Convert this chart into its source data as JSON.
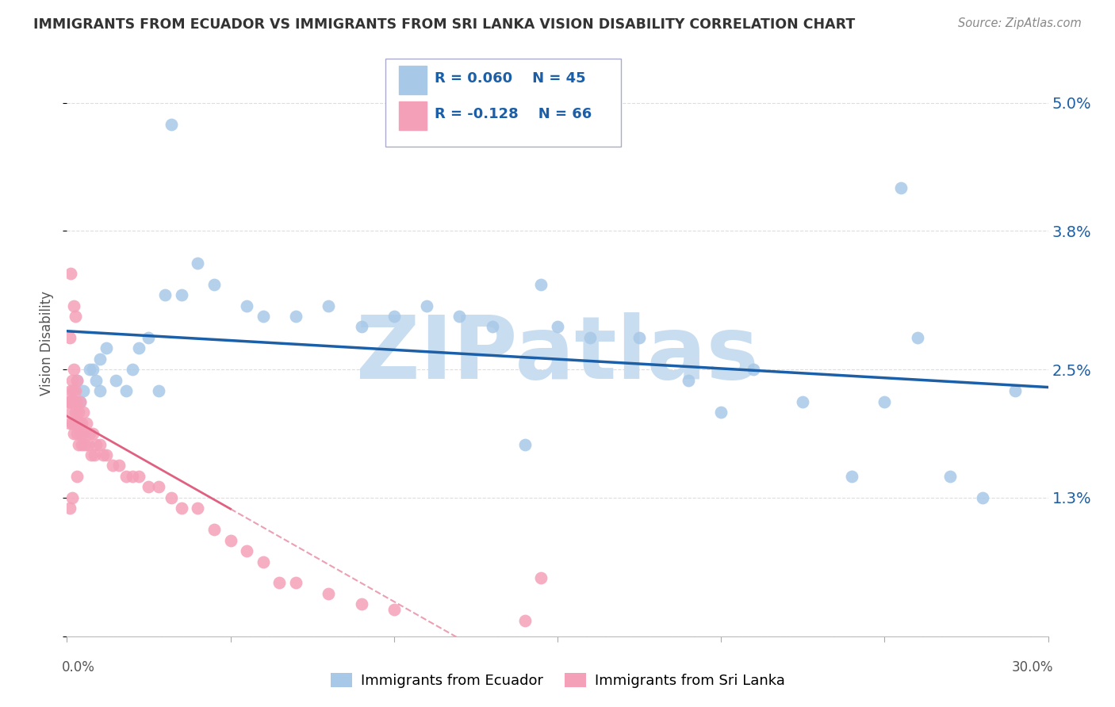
{
  "title": "IMMIGRANTS FROM ECUADOR VS IMMIGRANTS FROM SRI LANKA VISION DISABILITY CORRELATION CHART",
  "source": "Source: ZipAtlas.com",
  "ylabel": "Vision Disability",
  "xmin": 0.0,
  "xmax": 30.0,
  "ymin": 0.0,
  "ymax": 5.5,
  "ecuador_R": 0.06,
  "ecuador_N": 45,
  "srilanka_R": -0.128,
  "srilanka_N": 66,
  "ecuador_color": "#a8c8e8",
  "ecuador_line_color": "#1a5fa8",
  "srilanka_color": "#f4a0b8",
  "srilanka_line_color": "#e06080",
  "watermark": "ZIPatlas",
  "watermark_color": "#c8ddf0",
  "ytick_vals": [
    0.0,
    1.3,
    2.5,
    3.8,
    5.0
  ],
  "ytick_labels": [
    "",
    "1.3%",
    "2.5%",
    "3.8%",
    "5.0%"
  ],
  "grid_color": "#dddddd",
  "background_color": "#ffffff",
  "legend_box_color": "#e8f0f8",
  "legend_text_color": "#1a5fa8",
  "ec_x": [
    0.3,
    0.5,
    0.7,
    0.8,
    0.9,
    1.0,
    1.2,
    1.5,
    1.8,
    2.0,
    2.2,
    2.5,
    3.0,
    3.5,
    4.0,
    4.5,
    5.5,
    6.0,
    7.0,
    8.0,
    9.0,
    10.0,
    11.0,
    12.0,
    13.0,
    14.0,
    15.0,
    16.0,
    17.5,
    19.0,
    20.0,
    21.0,
    22.5,
    24.0,
    25.0,
    26.0,
    27.0,
    28.0,
    29.0,
    0.4,
    1.0,
    2.8,
    3.2,
    25.5,
    14.5
  ],
  "ec_y": [
    2.4,
    2.3,
    2.5,
    2.5,
    2.4,
    2.6,
    2.7,
    2.4,
    2.3,
    2.5,
    2.7,
    2.8,
    3.2,
    3.2,
    3.5,
    3.3,
    3.1,
    3.0,
    3.0,
    3.1,
    2.9,
    3.0,
    3.1,
    3.0,
    2.9,
    1.8,
    2.9,
    2.8,
    2.8,
    2.4,
    2.1,
    2.5,
    2.2,
    1.5,
    2.2,
    2.8,
    1.5,
    1.3,
    2.3,
    2.2,
    2.3,
    2.3,
    4.8,
    4.2,
    3.3
  ],
  "sl_x": [
    0.05,
    0.08,
    0.1,
    0.1,
    0.12,
    0.14,
    0.15,
    0.15,
    0.16,
    0.18,
    0.2,
    0.2,
    0.22,
    0.25,
    0.25,
    0.28,
    0.3,
    0.3,
    0.32,
    0.35,
    0.35,
    0.38,
    0.4,
    0.42,
    0.45,
    0.45,
    0.5,
    0.5,
    0.55,
    0.6,
    0.65,
    0.7,
    0.75,
    0.8,
    0.85,
    0.9,
    1.0,
    1.1,
    1.2,
    1.4,
    1.6,
    1.8,
    2.0,
    2.2,
    2.5,
    2.8,
    3.2,
    3.5,
    4.0,
    4.5,
    5.0,
    5.5,
    6.0,
    6.5,
    7.0,
    8.0,
    9.0,
    10.0,
    14.0,
    0.12,
    0.2,
    0.25,
    0.3,
    0.15,
    0.08,
    14.5
  ],
  "sl_y": [
    2.2,
    2.0,
    2.8,
    2.2,
    2.3,
    2.1,
    2.4,
    2.0,
    2.2,
    2.3,
    2.5,
    1.9,
    2.0,
    2.3,
    2.1,
    2.2,
    2.4,
    1.9,
    2.0,
    2.1,
    1.8,
    2.0,
    2.2,
    1.9,
    2.0,
    1.8,
    2.1,
    1.9,
    1.8,
    2.0,
    1.8,
    1.9,
    1.7,
    1.9,
    1.7,
    1.8,
    1.8,
    1.7,
    1.7,
    1.6,
    1.6,
    1.5,
    1.5,
    1.5,
    1.4,
    1.4,
    1.3,
    1.2,
    1.2,
    1.0,
    0.9,
    0.8,
    0.7,
    0.5,
    0.5,
    0.4,
    0.3,
    0.25,
    0.15,
    3.4,
    3.1,
    3.0,
    1.5,
    1.3,
    1.2,
    0.55
  ]
}
